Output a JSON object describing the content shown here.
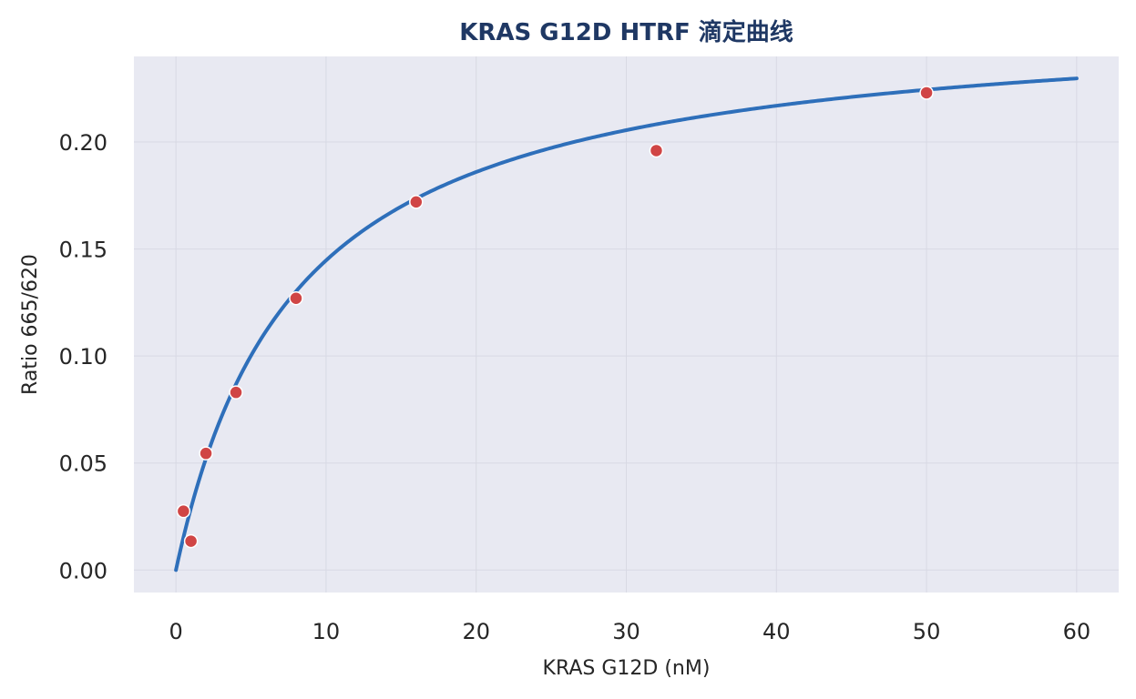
{
  "chart_data": {
    "type": "scatter",
    "title": "KRAS G12D HTRF 滴定曲线",
    "xlabel": "KRAS G12D (nM)",
    "ylabel": "Ratio 665/620",
    "xlim": [
      -2.8,
      62.8
    ],
    "ylim": [
      -0.0105,
      0.24
    ],
    "x_ticks": [
      0,
      10,
      20,
      30,
      40,
      50,
      60
    ],
    "x_tick_labels": [
      "0",
      "10",
      "20",
      "30",
      "40",
      "50",
      "60"
    ],
    "y_ticks": [
      0.0,
      0.05,
      0.1,
      0.15,
      0.2
    ],
    "y_tick_labels": [
      "0.00",
      "0.05",
      "0.10",
      "0.15",
      "0.20"
    ],
    "grid": true,
    "legend": "none",
    "colors": {
      "plot_background": "#e8e9f2",
      "grid": "#d8d9e4",
      "fit_line": "#2e6fba",
      "points": "#d04545",
      "point_edge": "#ffffff",
      "title": "#1f3864",
      "text": "#262626"
    },
    "series": [
      {
        "kind": "points",
        "x": [
          0.5,
          1,
          2,
          4,
          8,
          16,
          32,
          50
        ],
        "y": [
          0.0275,
          0.0135,
          0.0545,
          0.083,
          0.127,
          0.172,
          0.196,
          0.223
        ]
      },
      {
        "kind": "fit_curve",
        "model": "one-site binding",
        "bmax": 0.2603,
        "kd": 7.99,
        "x_range": [
          0,
          60
        ]
      }
    ]
  }
}
